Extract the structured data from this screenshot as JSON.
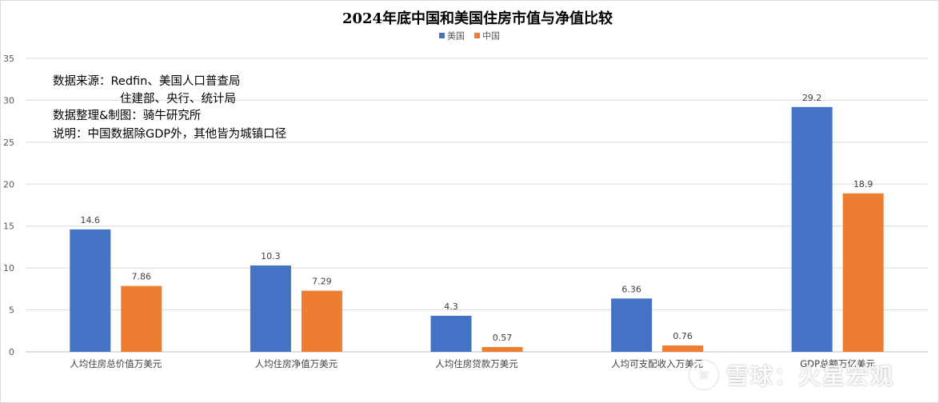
{
  "chart_data": {
    "type": "bar",
    "title": "2024年底中国和美国住房市值与净值比较",
    "categories": [
      "人均住房总价值万美元",
      "人均住房净值万美元",
      "人均住房贷款万美元",
      "人均可支配收入万美元",
      "GDP总额万亿美元"
    ],
    "series": [
      {
        "name": "美国",
        "color": "#4472C4",
        "values": [
          14.6,
          10.3,
          4.3,
          6.36,
          29.2
        ],
        "labels": [
          "14.6",
          "10.3",
          "4.3",
          "6.36",
          "29.2"
        ]
      },
      {
        "name": "中国",
        "color": "#ED7D31",
        "values": [
          7.86,
          7.29,
          0.57,
          0.76,
          18.9
        ],
        "labels": [
          "7.86",
          "7.29",
          "0.57",
          "0.76",
          "18.9"
        ]
      }
    ],
    "ylim": [
      0,
      35
    ],
    "yticks": [
      0,
      5,
      10,
      15,
      20,
      25,
      30,
      35
    ],
    "grid": true,
    "legend_position": "top",
    "annotations": [
      "数据来源：Redfin、美国人口普查局",
      "住建部、央行、统计局",
      "数据整理&制图：骑牛研究所",
      "说明：中国数据除GDP外，其他皆为城镇口径"
    ]
  },
  "watermark": {
    "text": "雪球：火星宏观"
  }
}
